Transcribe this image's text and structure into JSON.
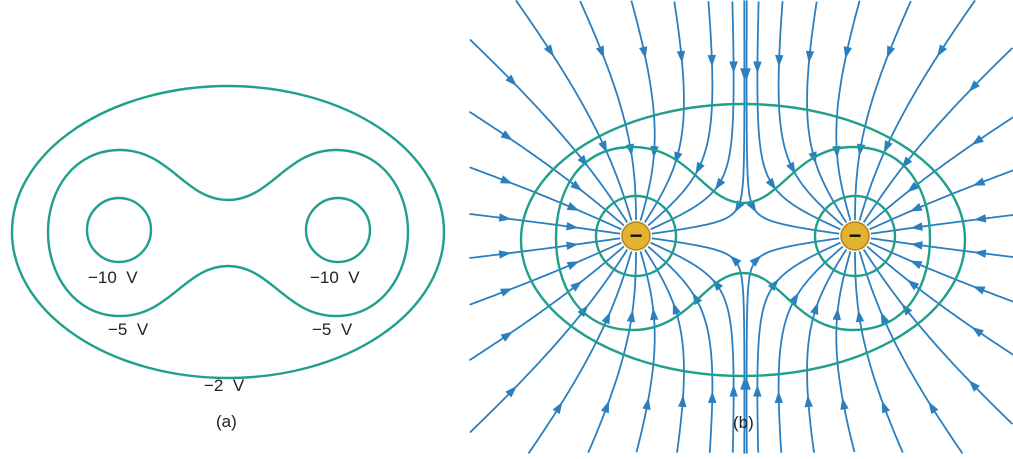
{
  "panel_a": {
    "labels": {
      "inner_left": "−10  V",
      "inner_right": "−10  V",
      "middle_left": "−5  V",
      "middle_right": "−5  V",
      "outer": "−2  V"
    },
    "caption": "(a)"
  },
  "panel_b": {
    "caption": "(b)",
    "charges": [
      {
        "sign": "−"
      },
      {
        "sign": "−"
      }
    ]
  },
  "colors": {
    "equipotential": "#1f9f8c",
    "field_line": "#2a7fc0",
    "charge_fill": "#e3b230",
    "charge_edge": "#b38417"
  }
}
